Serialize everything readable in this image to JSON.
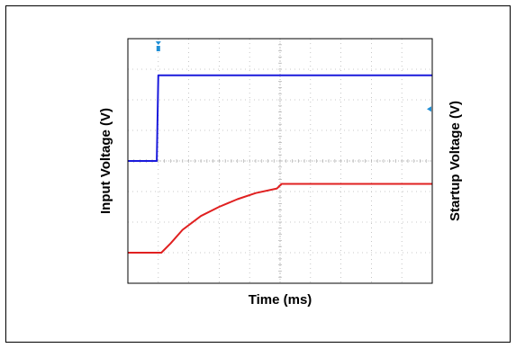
{
  "chart_data": {
    "type": "line",
    "xlabel": "Time (ms)",
    "ylabel_left": "Input Voltage (V)",
    "ylabel_right": "Startup Voltage (V)",
    "grid": true,
    "grid_divisions": {
      "x": 10,
      "y": 8
    },
    "xlim": [
      0,
      10
    ],
    "ylim": [
      0,
      8
    ],
    "trigger_marker": {
      "x": 1.0,
      "color": "#1f8fd6"
    },
    "level_marker": {
      "y": 5.7,
      "color": "#1f8fd6"
    },
    "series": [
      {
        "color": "#1a1adc",
        "x": [
          0,
          0.95,
          1.0,
          1.05,
          10
        ],
        "y": [
          4.0,
          4.0,
          6.8,
          6.8,
          6.8
        ]
      },
      {
        "color": "#e02020",
        "x": [
          0,
          1.1,
          1.4,
          1.8,
          2.4,
          3.0,
          3.6,
          4.2,
          4.9,
          5.05,
          10
        ],
        "y": [
          1.0,
          1.0,
          1.3,
          1.75,
          2.2,
          2.5,
          2.75,
          2.95,
          3.1,
          3.25,
          3.25
        ]
      }
    ]
  }
}
